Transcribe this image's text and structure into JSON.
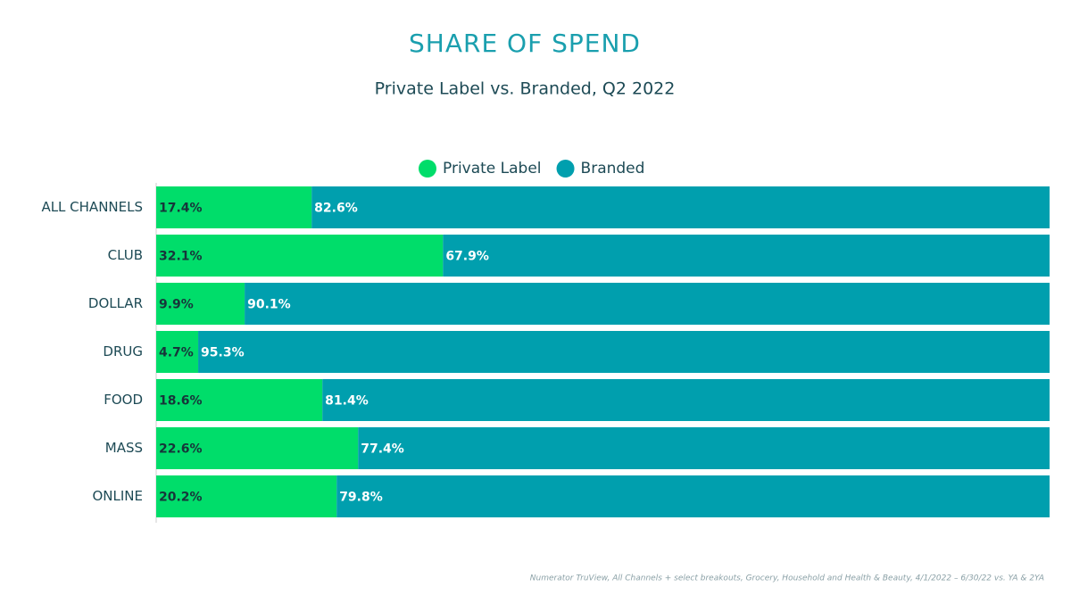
{
  "chart_data": {
    "type": "bar",
    "title": "SHARE OF SPEND",
    "subtitle": "Private Label vs. Branded, Q2 2022",
    "categories": [
      "ALL CHANNELS",
      "CLUB",
      "DOLLAR",
      "DRUG",
      "FOOD",
      "MASS",
      "ONLINE"
    ],
    "series": [
      {
        "name": "Private Label",
        "color": "#00dd6a",
        "values": [
          17.4,
          32.1,
          9.9,
          4.7,
          18.6,
          22.6,
          20.2
        ],
        "value_labels": [
          "17.4%",
          "32.1%",
          "9.9%",
          "4.7%",
          "18.6%",
          "22.6%",
          "20.2%"
        ]
      },
      {
        "name": "Branded",
        "color": "#009fae",
        "values": [
          82.6,
          67.9,
          90.1,
          95.3,
          81.4,
          77.4,
          79.8
        ],
        "value_labels": [
          "82.6%",
          "67.9%",
          "90.1%",
          "95.3%",
          "81.4%",
          "77.4%",
          "79.8%"
        ]
      }
    ],
    "xlim": [
      0,
      100
    ],
    "source": "Numerator TruView, All Channels + select breakouts, Grocery, Household and Health & Beauty, 4/1/2022  – 6/30/22 vs. YA & 2YA"
  }
}
